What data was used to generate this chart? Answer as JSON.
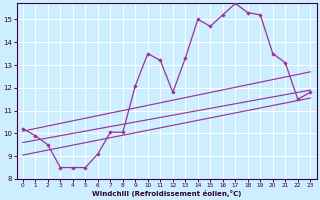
{
  "xlabel": "Windchill (Refroidissement éolien,°C)",
  "bg_color": "#cceeff",
  "grid_color": "#ffffff",
  "line_color": "#993399",
  "xlim": [
    -0.5,
    23.5
  ],
  "ylim": [
    8,
    15.7
  ],
  "xticks": [
    0,
    1,
    2,
    3,
    4,
    5,
    6,
    7,
    8,
    9,
    10,
    11,
    12,
    13,
    14,
    15,
    16,
    17,
    18,
    19,
    20,
    21,
    22,
    23
  ],
  "yticks": [
    8,
    9,
    10,
    11,
    12,
    13,
    14,
    15
  ],
  "line1_x": [
    0,
    1,
    2,
    3,
    4,
    5,
    6,
    7,
    8,
    9,
    10,
    11,
    12,
    13,
    14,
    15,
    16,
    17,
    18,
    19,
    20,
    21,
    22,
    23
  ],
  "line1_y": [
    10.2,
    9.9,
    9.5,
    8.5,
    8.5,
    8.5,
    9.1,
    10.05,
    10.05,
    12.1,
    13.5,
    13.2,
    11.8,
    13.3,
    15.0,
    14.7,
    15.2,
    15.7,
    15.3,
    15.2,
    13.5,
    13.1,
    11.5,
    11.8
  ],
  "line2_x": [
    0,
    23
  ],
  "line2_y": [
    10.1,
    12.7
  ],
  "line3_x": [
    0,
    23
  ],
  "line3_y": [
    9.6,
    11.9
  ],
  "line4_x": [
    0,
    23
  ],
  "line4_y": [
    9.05,
    11.55
  ]
}
